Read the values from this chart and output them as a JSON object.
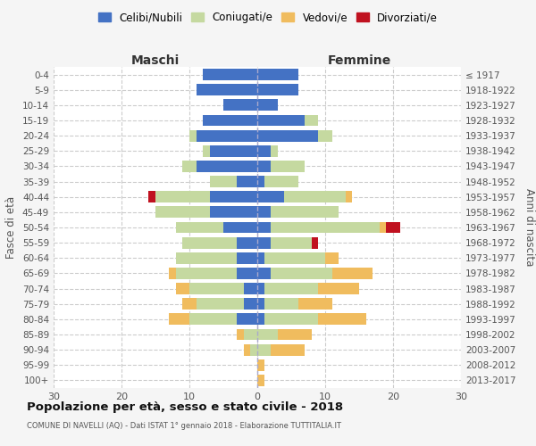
{
  "age_groups": [
    "0-4",
    "5-9",
    "10-14",
    "15-19",
    "20-24",
    "25-29",
    "30-34",
    "35-39",
    "40-44",
    "45-49",
    "50-54",
    "55-59",
    "60-64",
    "65-69",
    "70-74",
    "75-79",
    "80-84",
    "85-89",
    "90-94",
    "95-99",
    "100+"
  ],
  "birth_years": [
    "2013-2017",
    "2008-2012",
    "2003-2007",
    "1998-2002",
    "1993-1997",
    "1988-1992",
    "1983-1987",
    "1978-1982",
    "1973-1977",
    "1968-1972",
    "1963-1967",
    "1958-1962",
    "1953-1957",
    "1948-1952",
    "1943-1947",
    "1938-1942",
    "1933-1937",
    "1928-1932",
    "1923-1927",
    "1918-1922",
    "≤ 1917"
  ],
  "male": {
    "celibi": [
      8,
      9,
      5,
      8,
      9,
      7,
      9,
      3,
      7,
      7,
      5,
      3,
      3,
      3,
      2,
      2,
      3,
      0,
      0,
      0,
      0
    ],
    "coniugati": [
      0,
      0,
      0,
      0,
      1,
      1,
      2,
      4,
      8,
      8,
      7,
      8,
      9,
      9,
      8,
      7,
      7,
      2,
      1,
      0,
      0
    ],
    "vedovi": [
      0,
      0,
      0,
      0,
      0,
      0,
      0,
      0,
      0,
      0,
      0,
      0,
      0,
      1,
      2,
      2,
      3,
      1,
      1,
      0,
      0
    ],
    "divorziati": [
      0,
      0,
      0,
      0,
      0,
      0,
      0,
      0,
      1,
      0,
      0,
      0,
      0,
      0,
      0,
      0,
      0,
      0,
      0,
      0,
      0
    ]
  },
  "female": {
    "nubili": [
      6,
      6,
      3,
      7,
      9,
      2,
      2,
      1,
      4,
      2,
      2,
      2,
      1,
      2,
      1,
      1,
      1,
      0,
      0,
      0,
      0
    ],
    "coniugate": [
      0,
      0,
      0,
      2,
      2,
      1,
      5,
      5,
      9,
      10,
      16,
      6,
      9,
      9,
      8,
      5,
      8,
      3,
      2,
      0,
      0
    ],
    "vedove": [
      0,
      0,
      0,
      0,
      0,
      0,
      0,
      0,
      1,
      0,
      1,
      0,
      2,
      6,
      6,
      5,
      7,
      5,
      5,
      1,
      1
    ],
    "divorziate": [
      0,
      0,
      0,
      0,
      0,
      0,
      0,
      0,
      0,
      0,
      2,
      1,
      0,
      0,
      0,
      0,
      0,
      0,
      0,
      0,
      0
    ]
  },
  "colors": {
    "celibi": "#4472c4",
    "coniugati": "#c5d9a0",
    "vedovi": "#f0bc5e",
    "divorziati": "#c0111f"
  },
  "title": "Popolazione per età, sesso e stato civile - 2018",
  "subtitle": "COMUNE DI NAVELLI (AQ) - Dati ISTAT 1° gennaio 2018 - Elaborazione TUTTITALIA.IT",
  "xlabel_left": "Maschi",
  "xlabel_right": "Femmine",
  "ylabel_left": "Fasce di età",
  "ylabel_right": "Anni di nascita",
  "xlim": 30,
  "legend_labels": [
    "Celibi/Nubili",
    "Coniugati/e",
    "Vedovi/e",
    "Divorziati/e"
  ],
  "bg_color": "#f5f5f5",
  "plot_bg_color": "#ffffff"
}
